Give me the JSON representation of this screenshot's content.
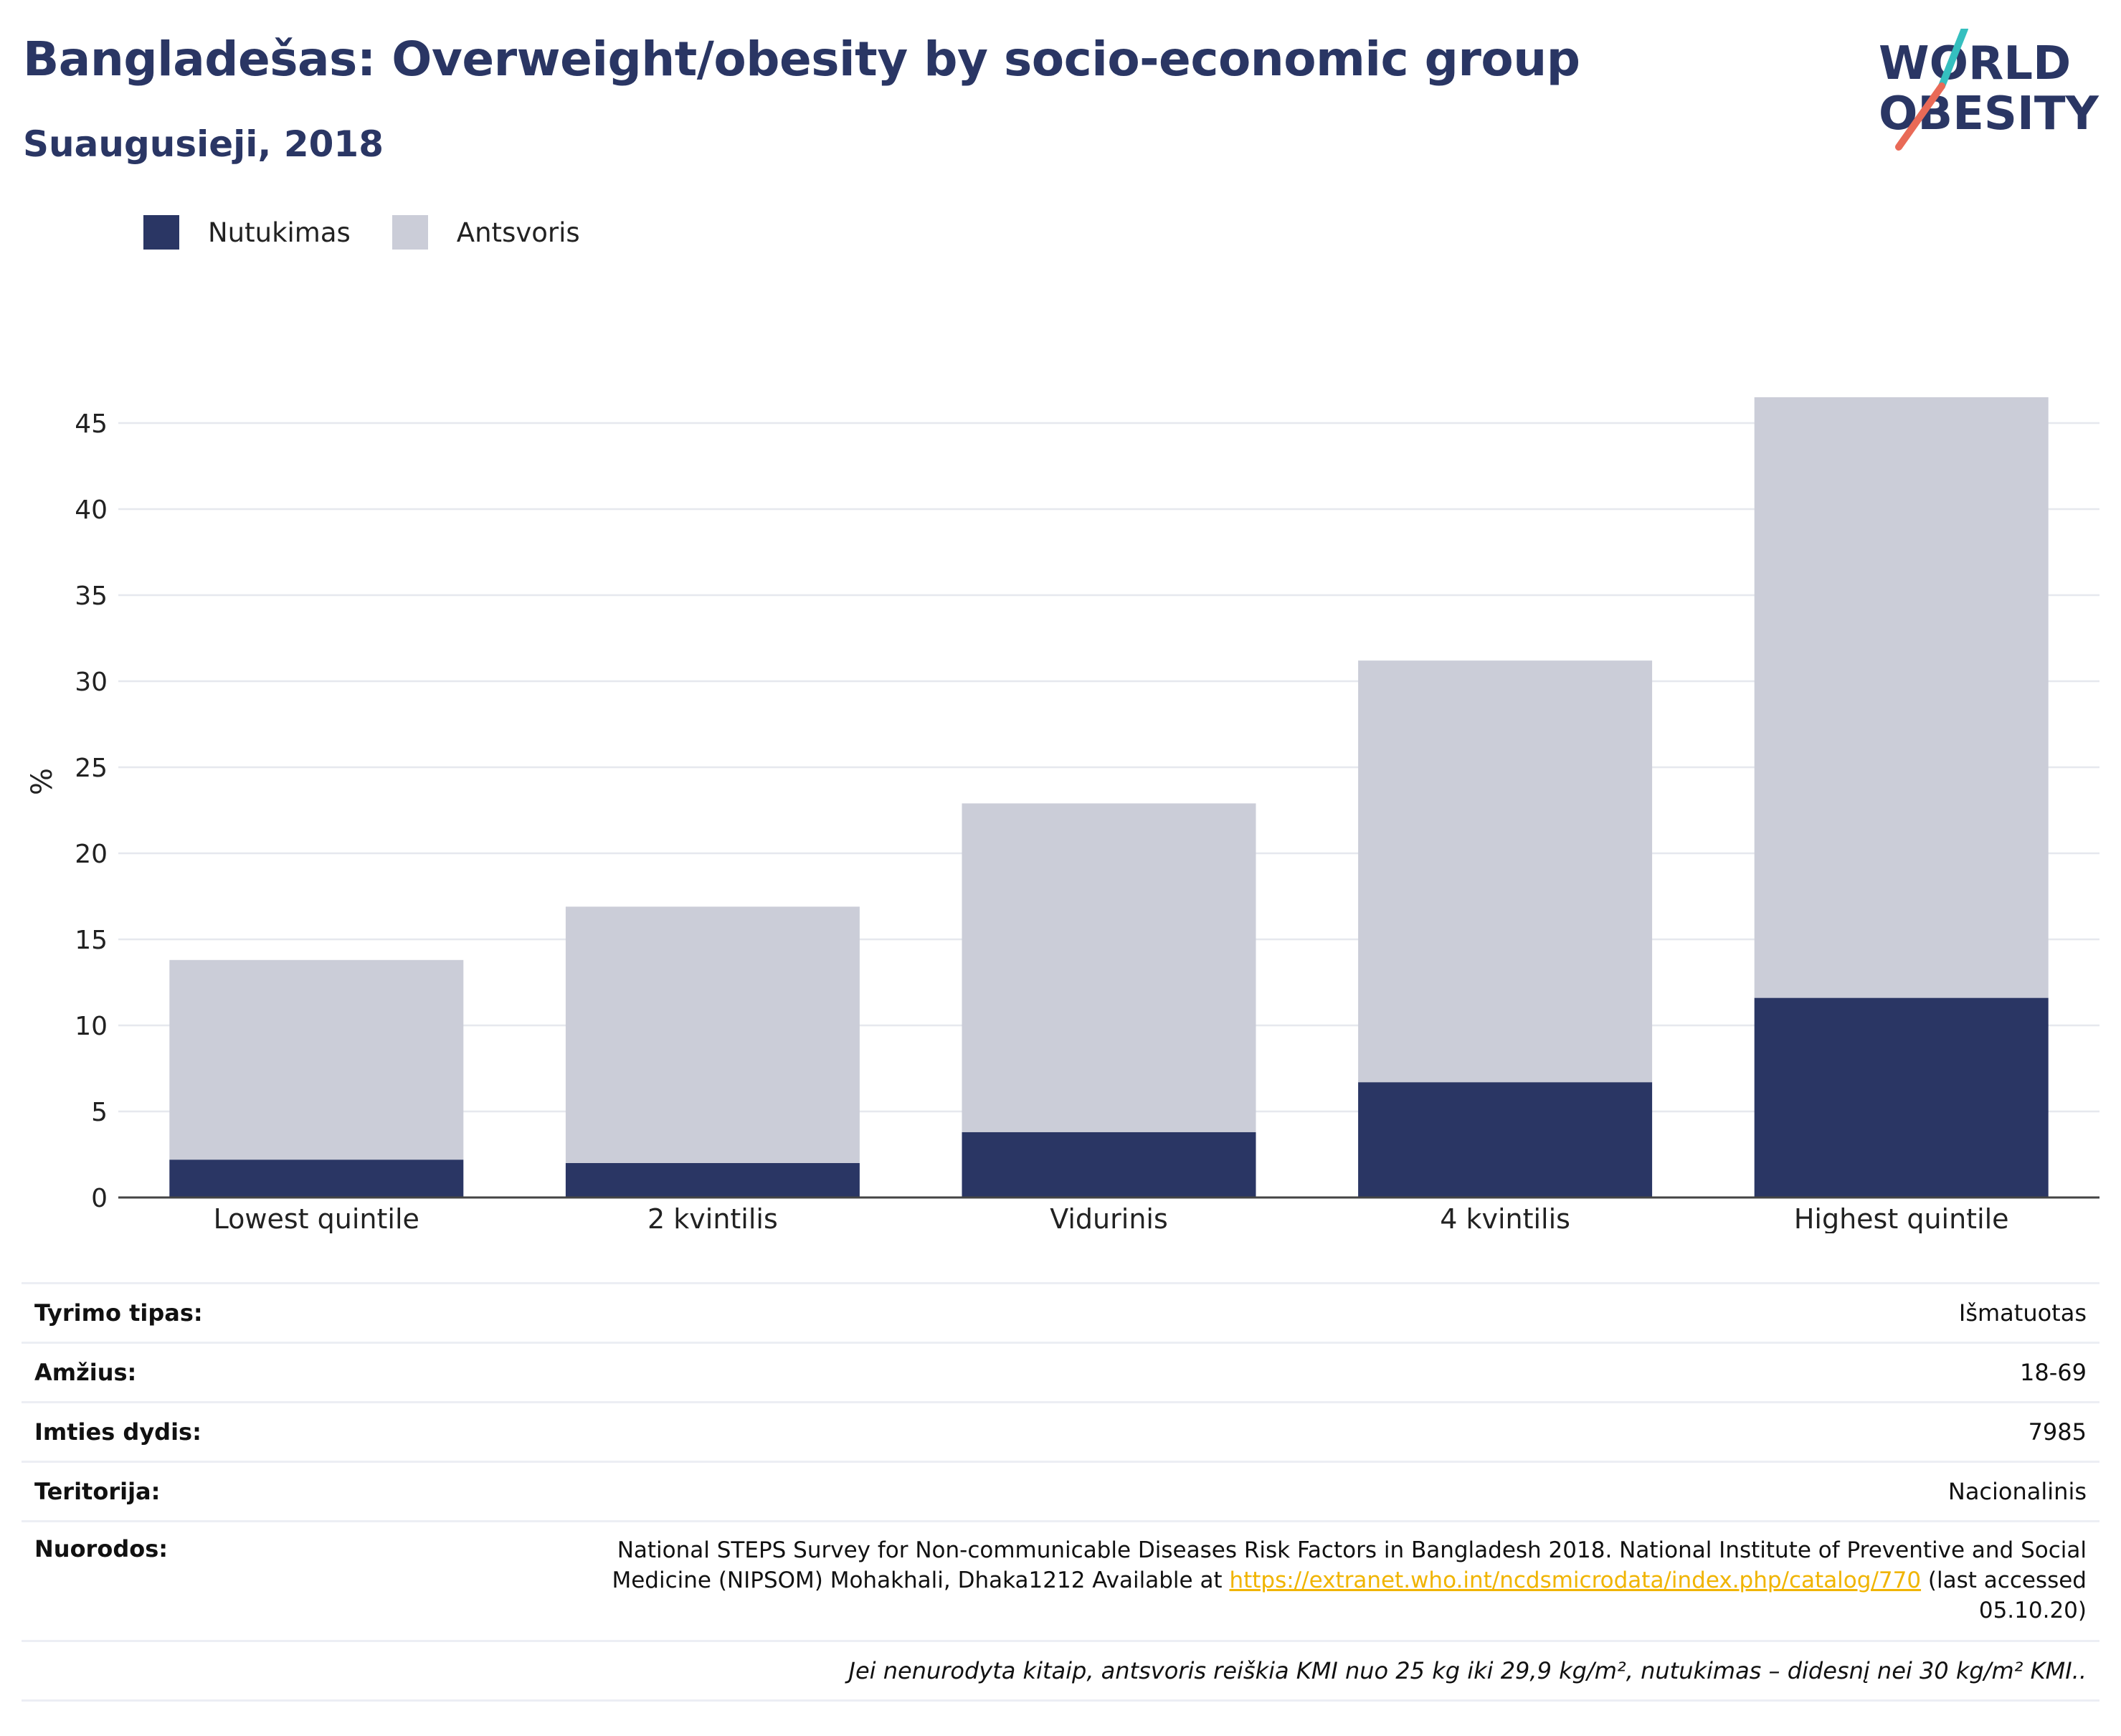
{
  "header": {
    "title": "Bangladešas: Overweight/obesity by socio-economic group",
    "subtitle": "Suaugusieji, 2018"
  },
  "logo": {
    "line1": "WORLD",
    "line2": "OBESITY"
  },
  "colors": {
    "obesity": "#2a3664",
    "overweight": "#cbcdd8",
    "accent_teal": "#35bfbf",
    "accent_coral": "#e96a57"
  },
  "chart_data": {
    "type": "bar",
    "stacked": true,
    "categories": [
      "Lowest quintile",
      "2 kvintilis",
      "Vidurinis",
      "4 kvintilis",
      "Highest quintile"
    ],
    "series": [
      {
        "name": "Nutukimas",
        "values": [
          2.2,
          2.0,
          3.8,
          6.7,
          11.6
        ]
      },
      {
        "name": "Antsvoris",
        "values": [
          11.6,
          14.9,
          19.1,
          24.5,
          34.9
        ]
      }
    ],
    "ylabel": "%",
    "ylim": [
      0,
      47
    ],
    "yticks": [
      0,
      5,
      10,
      15,
      20,
      25,
      30,
      35,
      40,
      45
    ],
    "grid": true,
    "legend": "top-left"
  },
  "meta": {
    "survey_type_label": "Tyrimo tipas:",
    "survey_type_value": "Išmatuotas",
    "age_label": "Amžius:",
    "age_value": "18-69",
    "sample_label": "Imties dydis:",
    "sample_value": "7985",
    "territory_label": "Teritorija:",
    "territory_value": "Nacionalinis",
    "refs_label": "Nuorodos:",
    "refs_text_1": "National STEPS Survey for Non-communicable Diseases Risk Factors in Bangladesh 2018. National Institute of Preventive and Social Medicine (NIPSOM) Mohakhali, Dhaka1212 Available at ",
    "refs_link": "https://extranet.who.int/ncdsmicrodata/index.php/catalog/770",
    "refs_text_2": " (last accessed 05.10.20)",
    "note": "Jei nenurodyta kitaip, antsvoris reiškia KMI nuo 25 kg iki 29,9 kg/m², nutukimas – didesnį nei 30 kg/m² KMI.."
  }
}
